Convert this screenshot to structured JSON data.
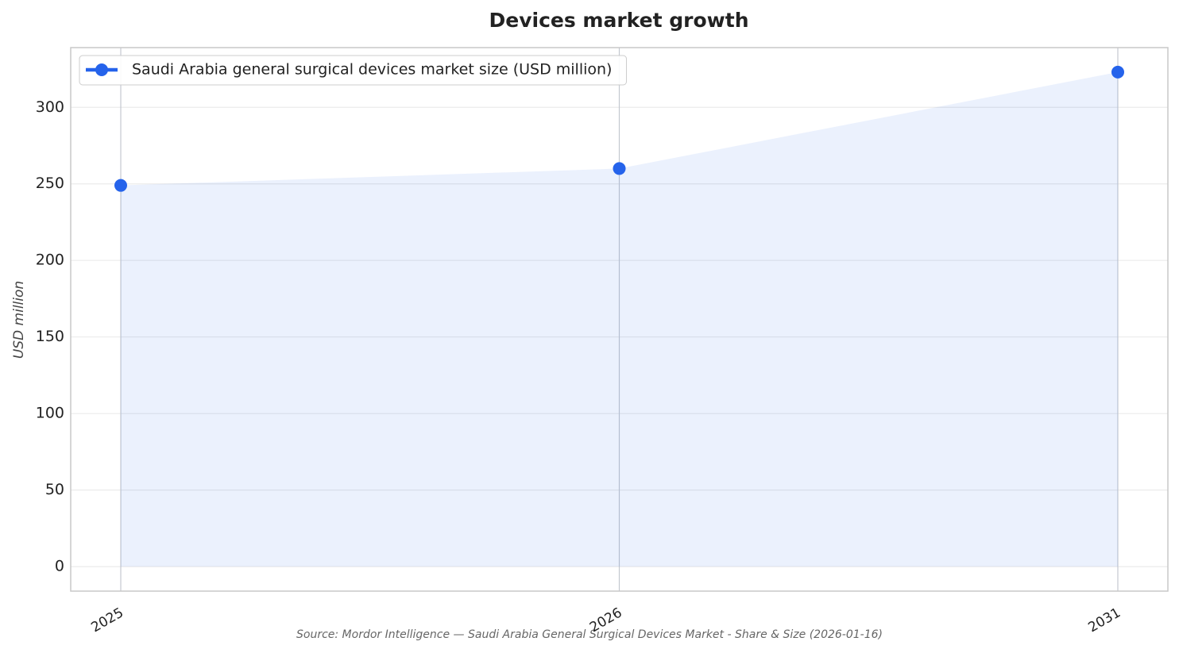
{
  "chart_data": {
    "type": "line",
    "title": "Devices market growth",
    "ylabel": "USD million",
    "source": "Source: Mordor Intelligence — Saudi Arabia General Surgical Devices Market - Share & Size (2026-01-16)",
    "categories": [
      "2025",
      "2026",
      "2031"
    ],
    "series": [
      {
        "name": "Saudi Arabia general surgical devices market size (USD million)",
        "color": "#2563eb",
        "values": [
          249,
          260,
          323
        ]
      }
    ],
    "ylim": [
      -16,
      339
    ],
    "yticks": [
      0,
      50,
      100,
      150,
      200,
      250,
      300
    ],
    "grid": true,
    "fill": true,
    "legend": "upper left"
  }
}
